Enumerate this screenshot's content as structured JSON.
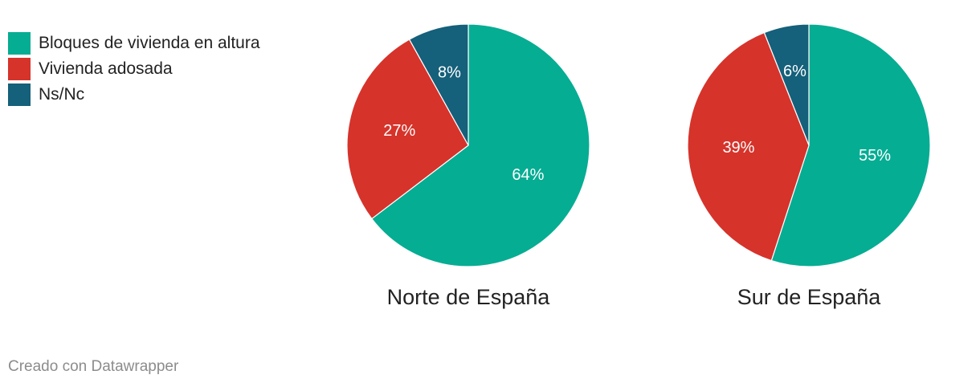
{
  "chart_data": {
    "type": "pie",
    "colors": {
      "Bloques de vivienda en altura": "#05ad93",
      "Vivienda adosada": "#d6332b",
      "Ns/Nc": "#15607a"
    },
    "legend": [
      "Bloques de vivienda en altura",
      "Vivienda adosada",
      "Ns/Nc"
    ],
    "legend_position": "top-left",
    "pies": [
      {
        "title": "Norte de España",
        "slices": [
          {
            "name": "Bloques de vivienda en altura",
            "value": 64,
            "label": "64%"
          },
          {
            "name": "Vivienda adosada",
            "value": 27,
            "label": "27%"
          },
          {
            "name": "Ns/Nc",
            "value": 8,
            "label": "8%"
          }
        ]
      },
      {
        "title": "Sur de España",
        "slices": [
          {
            "name": "Bloques de vivienda en altura",
            "value": 55,
            "label": "55%"
          },
          {
            "name": "Vivienda adosada",
            "value": 39,
            "label": "39%"
          },
          {
            "name": "Ns/Nc",
            "value": 6,
            "label": "6%"
          }
        ]
      }
    ]
  },
  "legend": {
    "items": [
      {
        "label": "Bloques de vivienda en altura",
        "color": "#05ad93"
      },
      {
        "label": "Vivienda adosada",
        "color": "#d6332b"
      },
      {
        "label": "Ns/Nc",
        "color": "#15607a"
      }
    ]
  },
  "footer": {
    "credit": "Creado con Datawrapper"
  }
}
